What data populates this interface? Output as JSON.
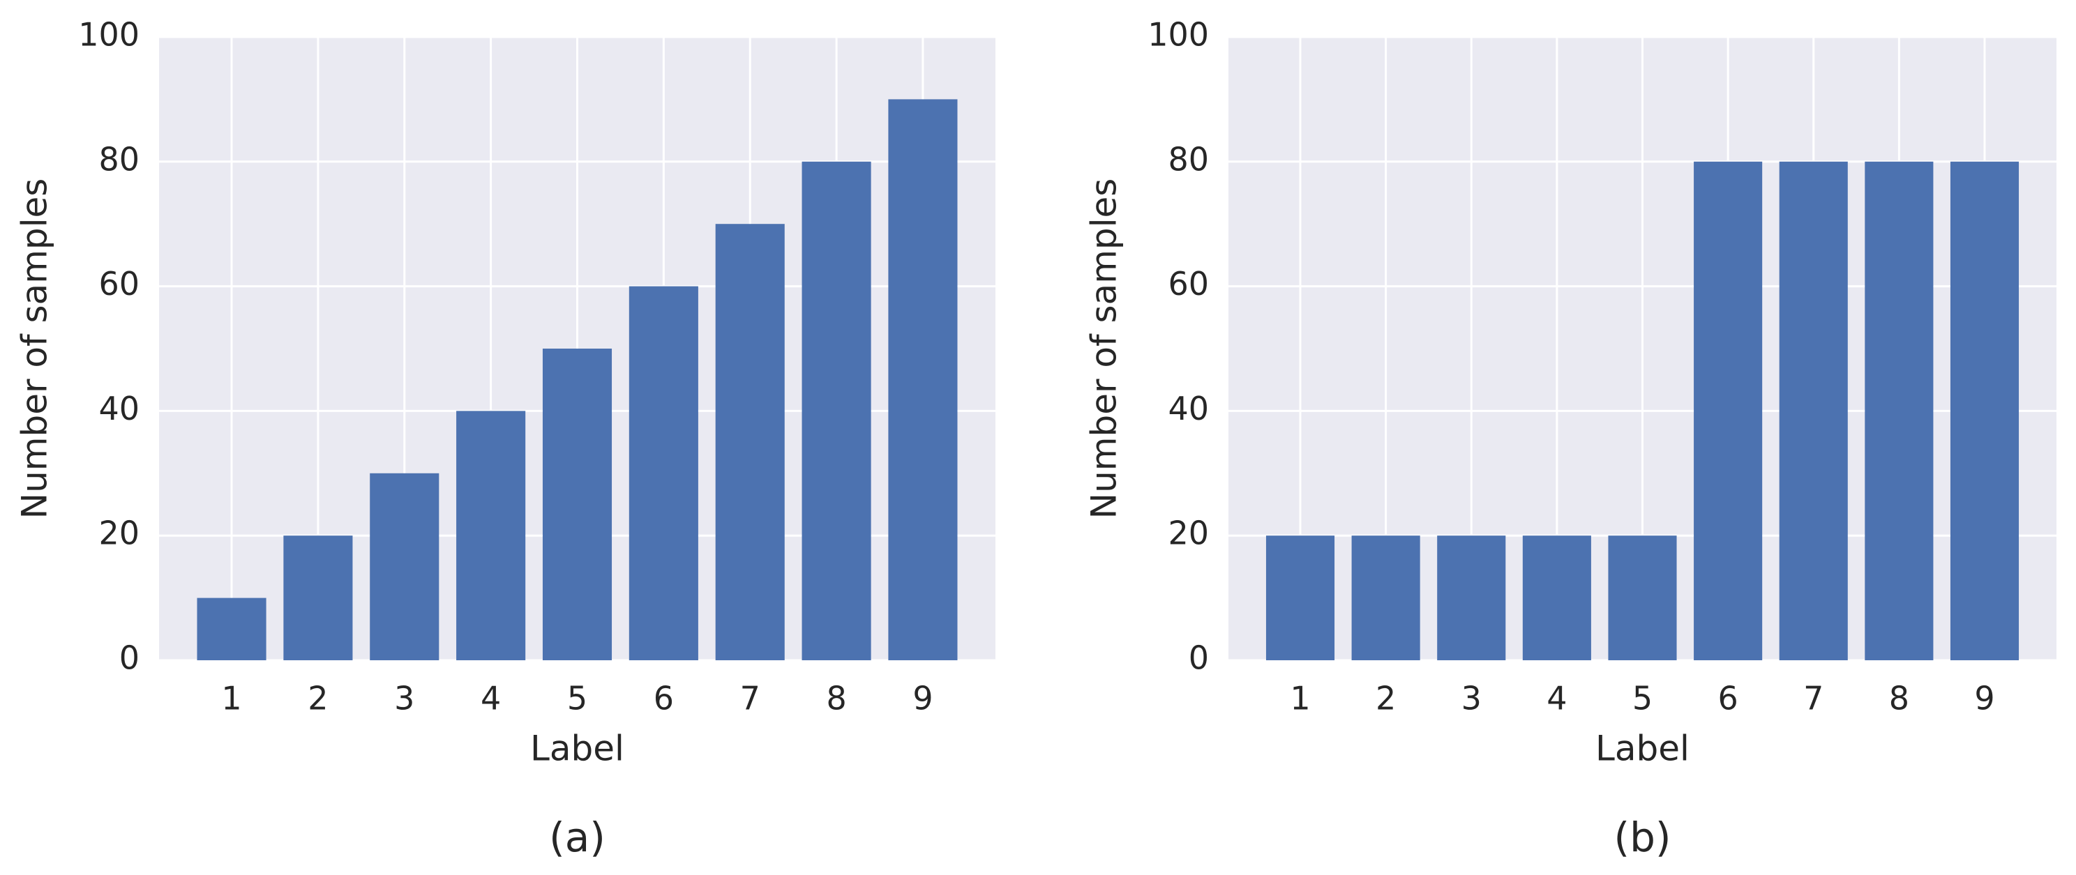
{
  "chart_data": [
    {
      "type": "bar",
      "caption": "(a)",
      "x_label": "Label",
      "y_label": "Number of samples",
      "categories": [
        "1",
        "2",
        "3",
        "4",
        "5",
        "6",
        "7",
        "8",
        "9"
      ],
      "values": [
        10,
        20,
        30,
        40,
        50,
        60,
        70,
        80,
        90
      ],
      "color": "#4c72b0",
      "ylim": [
        0,
        100
      ],
      "yticks": [
        0,
        20,
        40,
        60,
        80,
        100
      ],
      "grid": true
    },
    {
      "type": "bar",
      "caption": "(b)",
      "x_label": "Label",
      "y_label": "Number of samples",
      "categories": [
        "1",
        "2",
        "3",
        "4",
        "5",
        "6",
        "7",
        "8",
        "9"
      ],
      "values": [
        20,
        20,
        20,
        20,
        20,
        80,
        80,
        80,
        80
      ],
      "color": "#4c72b0",
      "ylim": [
        0,
        100
      ],
      "yticks": [
        0,
        20,
        40,
        60,
        80,
        100
      ],
      "grid": true
    }
  ]
}
